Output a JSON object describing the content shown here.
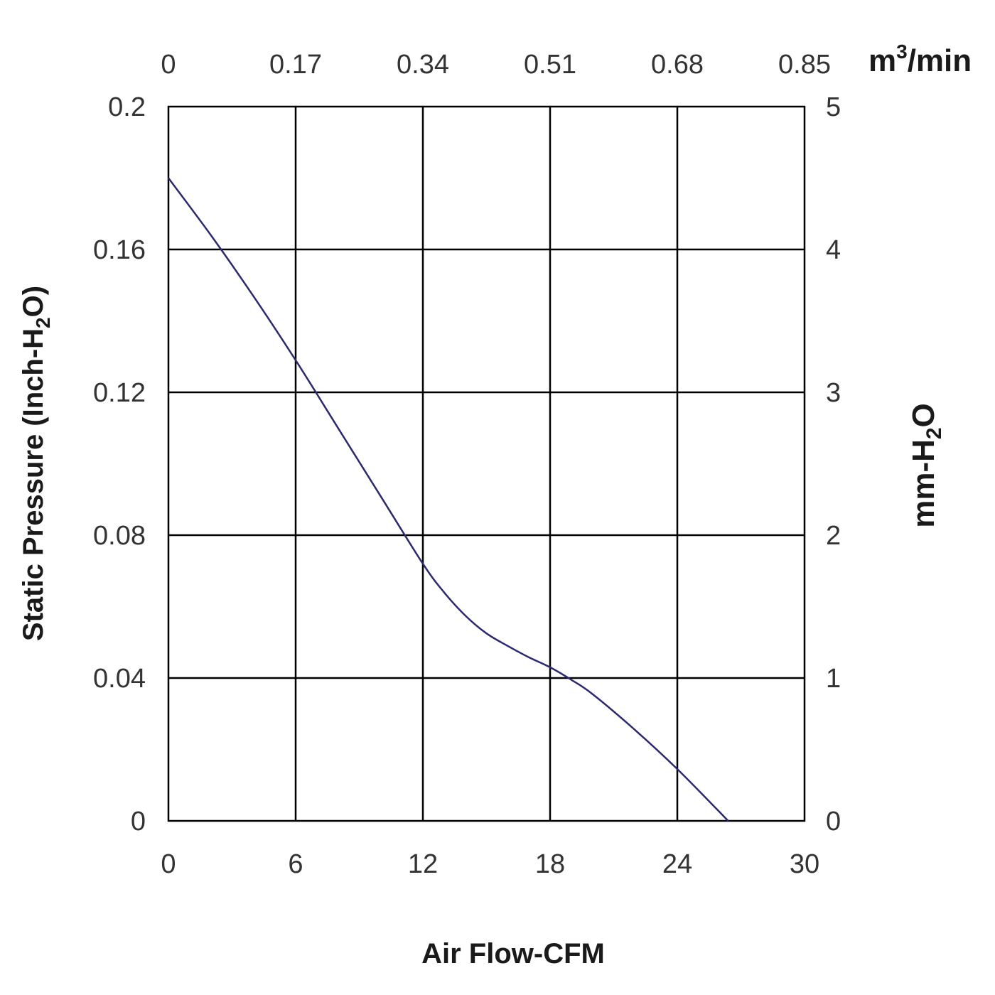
{
  "chart_data": {
    "type": "line",
    "x_axis": {
      "title": "Air Flow-CFM",
      "ticks": [
        "0",
        "6",
        "12",
        "18",
        "24",
        "30"
      ],
      "range": [
        0,
        30
      ]
    },
    "x2_axis": {
      "unit_main": "m",
      "unit_sup": "3",
      "unit_rest": "/min",
      "ticks": [
        "0",
        "0.17",
        "0.34",
        "0.51",
        "0.68",
        "0.85"
      ]
    },
    "y_axis": {
      "title_main": "Static Pressure (Inch-H",
      "title_sub": "2",
      "title_rest": "O)",
      "ticks": [
        "0",
        "0.04",
        "0.08",
        "0.12",
        "0.16",
        "0.2"
      ],
      "range": [
        0,
        0.2
      ]
    },
    "y2_axis": {
      "title_main": "mm-H",
      "title_sub": "2",
      "title_rest": "O",
      "ticks": [
        "0",
        "1",
        "2",
        "3",
        "4",
        "5"
      ]
    },
    "grid": true,
    "series": [
      {
        "color": "#2b2a6e",
        "x": [
          0,
          2,
          4,
          6,
          8,
          10,
          12,
          13,
          14,
          15,
          16,
          17,
          18,
          19,
          20,
          22,
          24,
          26.4
        ],
        "y": [
          0.18,
          0.164,
          0.147,
          0.129,
          0.11,
          0.091,
          0.072,
          0.064,
          0.0575,
          0.0525,
          0.049,
          0.0458,
          0.043,
          0.0395,
          0.0355,
          0.0255,
          0.0145,
          0.0
        ]
      }
    ]
  }
}
